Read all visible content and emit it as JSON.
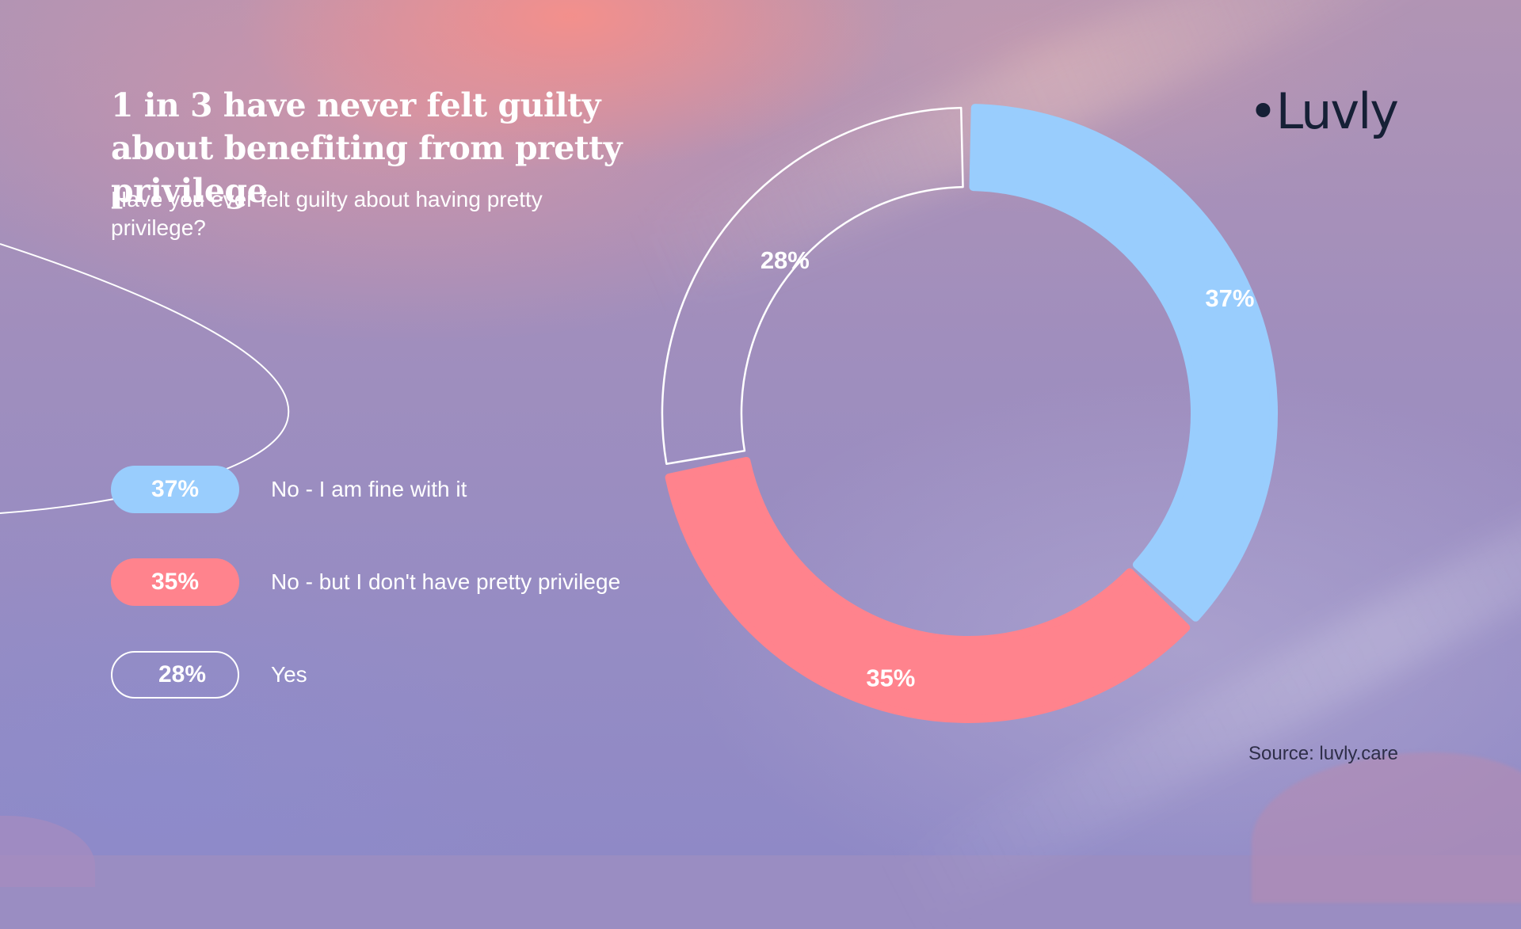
{
  "title": "1 in 3 have never felt guilty about benefiting from pretty privilege",
  "subtitle": "Have you ever felt guilty about having pretty privilege?",
  "logo": "•Luvly",
  "source": "Source: luvly.care",
  "colors": {
    "blue": "#99cdfd",
    "coral": "#ff838d",
    "outline": "#ffffff",
    "text": "#ffffff",
    "logo": "#162036"
  },
  "legend": [
    {
      "value_label": "37%",
      "label": "No - I am fine with it",
      "color": "#99cdfd",
      "style": "filled"
    },
    {
      "value_label": "35%",
      "label": "No - but I don't have pretty privilege",
      "color": "#ff838d",
      "style": "filled"
    },
    {
      "value_label": "28%",
      "label": "Yes",
      "color": "#ffffff",
      "style": "outline"
    }
  ],
  "chart_data": {
    "type": "pie",
    "variant": "donut",
    "title": "1 in 3 have never felt guilty about benefiting from pretty privilege",
    "subtitle": "Have you ever felt guilty about having pretty privilege?",
    "categories": [
      "No - I am fine with it",
      "No - but I don't have pretty privilege",
      "Yes"
    ],
    "values": [
      37,
      35,
      28
    ],
    "unit": "%",
    "labels": [
      "37%",
      "35%",
      "28%"
    ],
    "slice_colors": [
      "#99cdfd",
      "#ff838d",
      "outline-white"
    ],
    "legend_position": "left",
    "direction": "clockwise-from-top"
  }
}
